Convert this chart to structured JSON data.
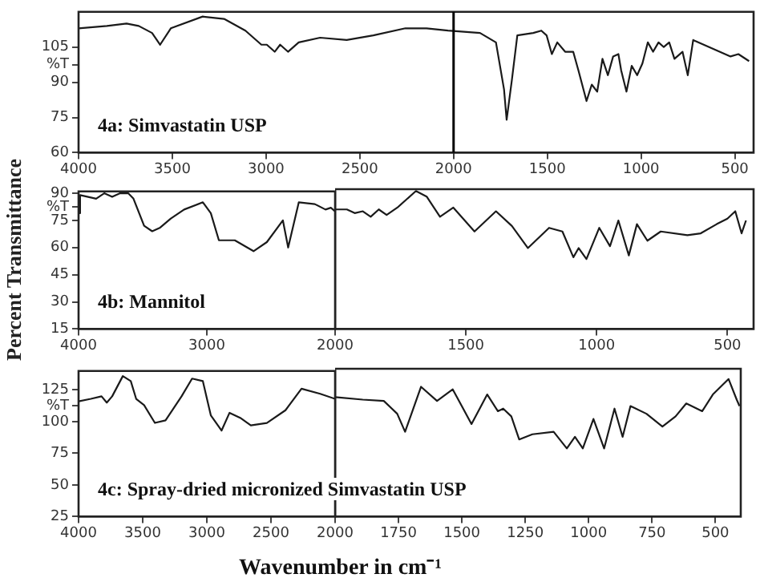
{
  "chart_data": [
    {
      "type": "line",
      "title": "4a:  Simvastatin USP",
      "xlim": [
        4000,
        400
      ],
      "xticks": [
        4000,
        3500,
        3000,
        2500,
        2000,
        1500,
        1000,
        500
      ],
      "ylim": [
        60,
        120
      ],
      "yticks": [
        60,
        75,
        90,
        {
          "value": 97.5,
          "label": "%T"
        },
        105
      ],
      "legend": false,
      "marker": "none",
      "line_style": "solid",
      "ref_lines": [
        {
          "axis": "x",
          "value": 2000,
          "color": "#000000"
        }
      ],
      "series": [
        {
          "color": "#1a1a1a",
          "x": [
            4000,
            3849,
            3744,
            3679,
            3608,
            3565,
            3508,
            3338,
            3224,
            3110,
            3025,
            2996,
            2954,
            2925,
            2883,
            2826,
            2712,
            2570,
            2428,
            2257,
            2144,
            2030,
            1859,
            1774,
            1731,
            1717,
            1689,
            1660,
            1575,
            1532,
            1504,
            1476,
            1447,
            1405,
            1362,
            1334,
            1291,
            1263,
            1234,
            1206,
            1177,
            1149,
            1121,
            1106,
            1078,
            1050,
            1021,
            993,
            964,
            936,
            907,
            879,
            850,
            822,
            779,
            751,
            722,
            637,
            523,
            481,
            424
          ],
          "values": [
            113,
            114,
            115,
            114,
            111,
            106,
            113,
            118,
            117,
            112,
            106,
            106,
            103,
            106,
            103,
            107,
            109,
            108,
            110,
            113,
            113,
            112,
            111,
            107,
            87,
            74,
            91,
            110,
            111,
            112,
            110,
            102,
            107,
            103,
            103,
            95,
            82,
            89,
            86,
            100,
            93,
            101,
            102,
            95,
            86,
            97,
            93,
            98,
            107,
            103,
            107,
            105,
            107,
            100,
            103,
            93,
            108,
            105,
            101,
            102,
            99
          ]
        }
      ]
    },
    {
      "type": "line",
      "title": "4b:  Mannitol",
      "ylabel": "Percent  Transmittance",
      "xlim": [
        4000,
        2000
      ],
      "xticks": [
        4000,
        3000,
        2000
      ],
      "ylim": [
        15,
        91
      ],
      "yticks": [
        15,
        30,
        45,
        60,
        75,
        {
          "value": 82.5,
          "label": "%T"
        },
        90
      ],
      "legend": false,
      "marker": "none",
      "line_style": "solid",
      "series": [
        {
          "color": "#1a1a1a",
          "x": [
            4000,
            3988,
            3925,
            3863,
            3800,
            3738,
            3676,
            3613,
            3572,
            3489,
            3426,
            3364,
            3281,
            3177,
            3031,
            2969,
            2906,
            2782,
            2636,
            2532,
            2407,
            2366,
            2283,
            2158,
            2075,
            2033,
            2000
          ],
          "values": [
            79,
            89,
            88,
            87,
            90,
            88,
            90,
            90,
            87,
            72,
            69,
            71,
            76,
            81,
            85,
            79,
            64,
            64,
            58,
            63,
            75,
            60,
            85,
            84,
            81,
            82,
            80
          ]
        }
      ]
    },
    {
      "type": "line",
      "xlim": [
        2000,
        400
      ],
      "xticks": [
        1500,
        1000,
        500
      ],
      "ylim": [
        15,
        91
      ],
      "tick_labels": "x",
      "legend": false,
      "marker": "none",
      "line_style": "solid",
      "series": [
        {
          "color": "#1a1a1a",
          "x": [
            2000,
            1955,
            1925,
            1894,
            1864,
            1833,
            1803,
            1762,
            1691,
            1650,
            1599,
            1548,
            1467,
            1385,
            1324,
            1263,
            1182,
            1131,
            1089,
            1069,
            1039,
            990,
            949,
            917,
            877,
            846,
            806,
            755,
            653,
            602,
            541,
            500,
            470,
            446,
            429
          ],
          "values": [
            80,
            80,
            78,
            79,
            76,
            80,
            77,
            81,
            90,
            87,
            76,
            81,
            68,
            79,
            71,
            59,
            70,
            68,
            54,
            59,
            53,
            70,
            60,
            74,
            55,
            72,
            63,
            68,
            66,
            67,
            72,
            75,
            79,
            67,
            74
          ]
        }
      ]
    },
    {
      "type": "line",
      "title": "4c: Spray-dried  micronized Simvastatin  USP",
      "xlabel": "Wavenumber  in cm⁻¹",
      "xlim": [
        4000,
        2000
      ],
      "xticks": [
        4000,
        3500,
        3000,
        2500,
        2000
      ],
      "ylim": [
        25,
        140
      ],
      "yticks": [
        25,
        50,
        75,
        100,
        {
          "value": 112.5,
          "label": "%T"
        },
        125
      ],
      "legend": false,
      "marker": "none",
      "line_style": "solid",
      "series": [
        {
          "color": "#1a1a1a",
          "x": [
            4000,
            3904,
            3821,
            3780,
            3738,
            3655,
            3593,
            3551,
            3489,
            3405,
            3322,
            3197,
            3115,
            3031,
            2969,
            2885,
            2823,
            2740,
            2657,
            2532,
            2387,
            2262,
            2116,
            2000
          ],
          "values": [
            116,
            118,
            120,
            115,
            120,
            136,
            132,
            118,
            113,
            99,
            101,
            120,
            134,
            132,
            105,
            93,
            107,
            103,
            97,
            99,
            109,
            126,
            122,
            118
          ]
        }
      ]
    },
    {
      "type": "line",
      "xlim": [
        2000,
        400
      ],
      "xticks": [
        1750,
        1500,
        1250,
        1000,
        750,
        500
      ],
      "ylim": [
        25,
        140
      ],
      "tick_labels": "x",
      "legend": false,
      "marker": "none",
      "line_style": "solid",
      "series": [
        {
          "color": "#1a1a1a",
          "x": [
            2000,
            1891,
            1808,
            1755,
            1724,
            1661,
            1598,
            1536,
            1462,
            1400,
            1358,
            1337,
            1305,
            1274,
            1222,
            1138,
            1086,
            1054,
            1023,
            981,
            939,
            898,
            866,
            835,
            772,
            709,
            657,
            615,
            552,
            510,
            448,
            416,
            405
          ],
          "values": [
            118,
            116,
            115,
            105,
            91,
            126,
            115,
            124,
            97,
            120,
            107,
            109,
            103,
            85,
            89,
            91,
            78,
            87,
            78,
            101,
            78,
            109,
            87,
            111,
            105,
            95,
            103,
            113,
            107,
            120,
            132,
            116,
            111
          ]
        }
      ]
    }
  ]
}
